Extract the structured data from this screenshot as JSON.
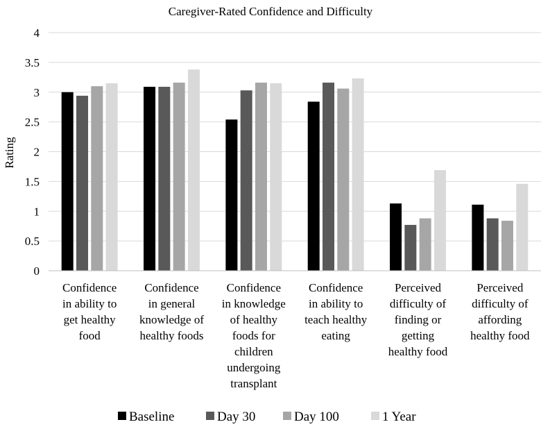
{
  "chart_data": {
    "type": "bar",
    "title": "Caregiver-Rated Confidence and Difficulty",
    "xlabel": "",
    "ylabel": "Rating",
    "ylim": [
      0,
      4
    ],
    "yticks": [
      "0",
      "0.5",
      "1",
      "1.5",
      "2",
      "2.5",
      "3",
      "3.5",
      "4"
    ],
    "grid": true,
    "legend_position": "bottom",
    "categories": [
      [
        "Confidence",
        "in ability to",
        "get healthy",
        "food"
      ],
      [
        "Confidence",
        "in general",
        "knowledge of",
        "healthy foods"
      ],
      [
        "Confidence",
        "in knowledge",
        "of healthy",
        "foods for",
        "children",
        "undergoing",
        "transplant"
      ],
      [
        "Confidence",
        "in ability to",
        "teach healthy",
        "eating"
      ],
      [
        "Perceived",
        "difficulty of",
        "finding or",
        "getting",
        "healthy food"
      ],
      [
        "Perceived",
        "difficulty of",
        "affording",
        "healthy food"
      ]
    ],
    "series": [
      {
        "name": "Baseline",
        "color": "#000000",
        "values": [
          3.0,
          3.09,
          2.54,
          2.84,
          1.13,
          1.11
        ]
      },
      {
        "name": "Day 30",
        "color": "#595959",
        "values": [
          2.94,
          3.09,
          3.03,
          3.16,
          0.77,
          0.88
        ]
      },
      {
        "name": "Day 100",
        "color": "#a6a6a6",
        "values": [
          3.1,
          3.16,
          3.16,
          3.06,
          0.88,
          0.84
        ]
      },
      {
        "name": "1 Year",
        "color": "#d9d9d9",
        "values": [
          3.15,
          3.38,
          3.15,
          3.23,
          1.69,
          1.46
        ]
      }
    ]
  }
}
